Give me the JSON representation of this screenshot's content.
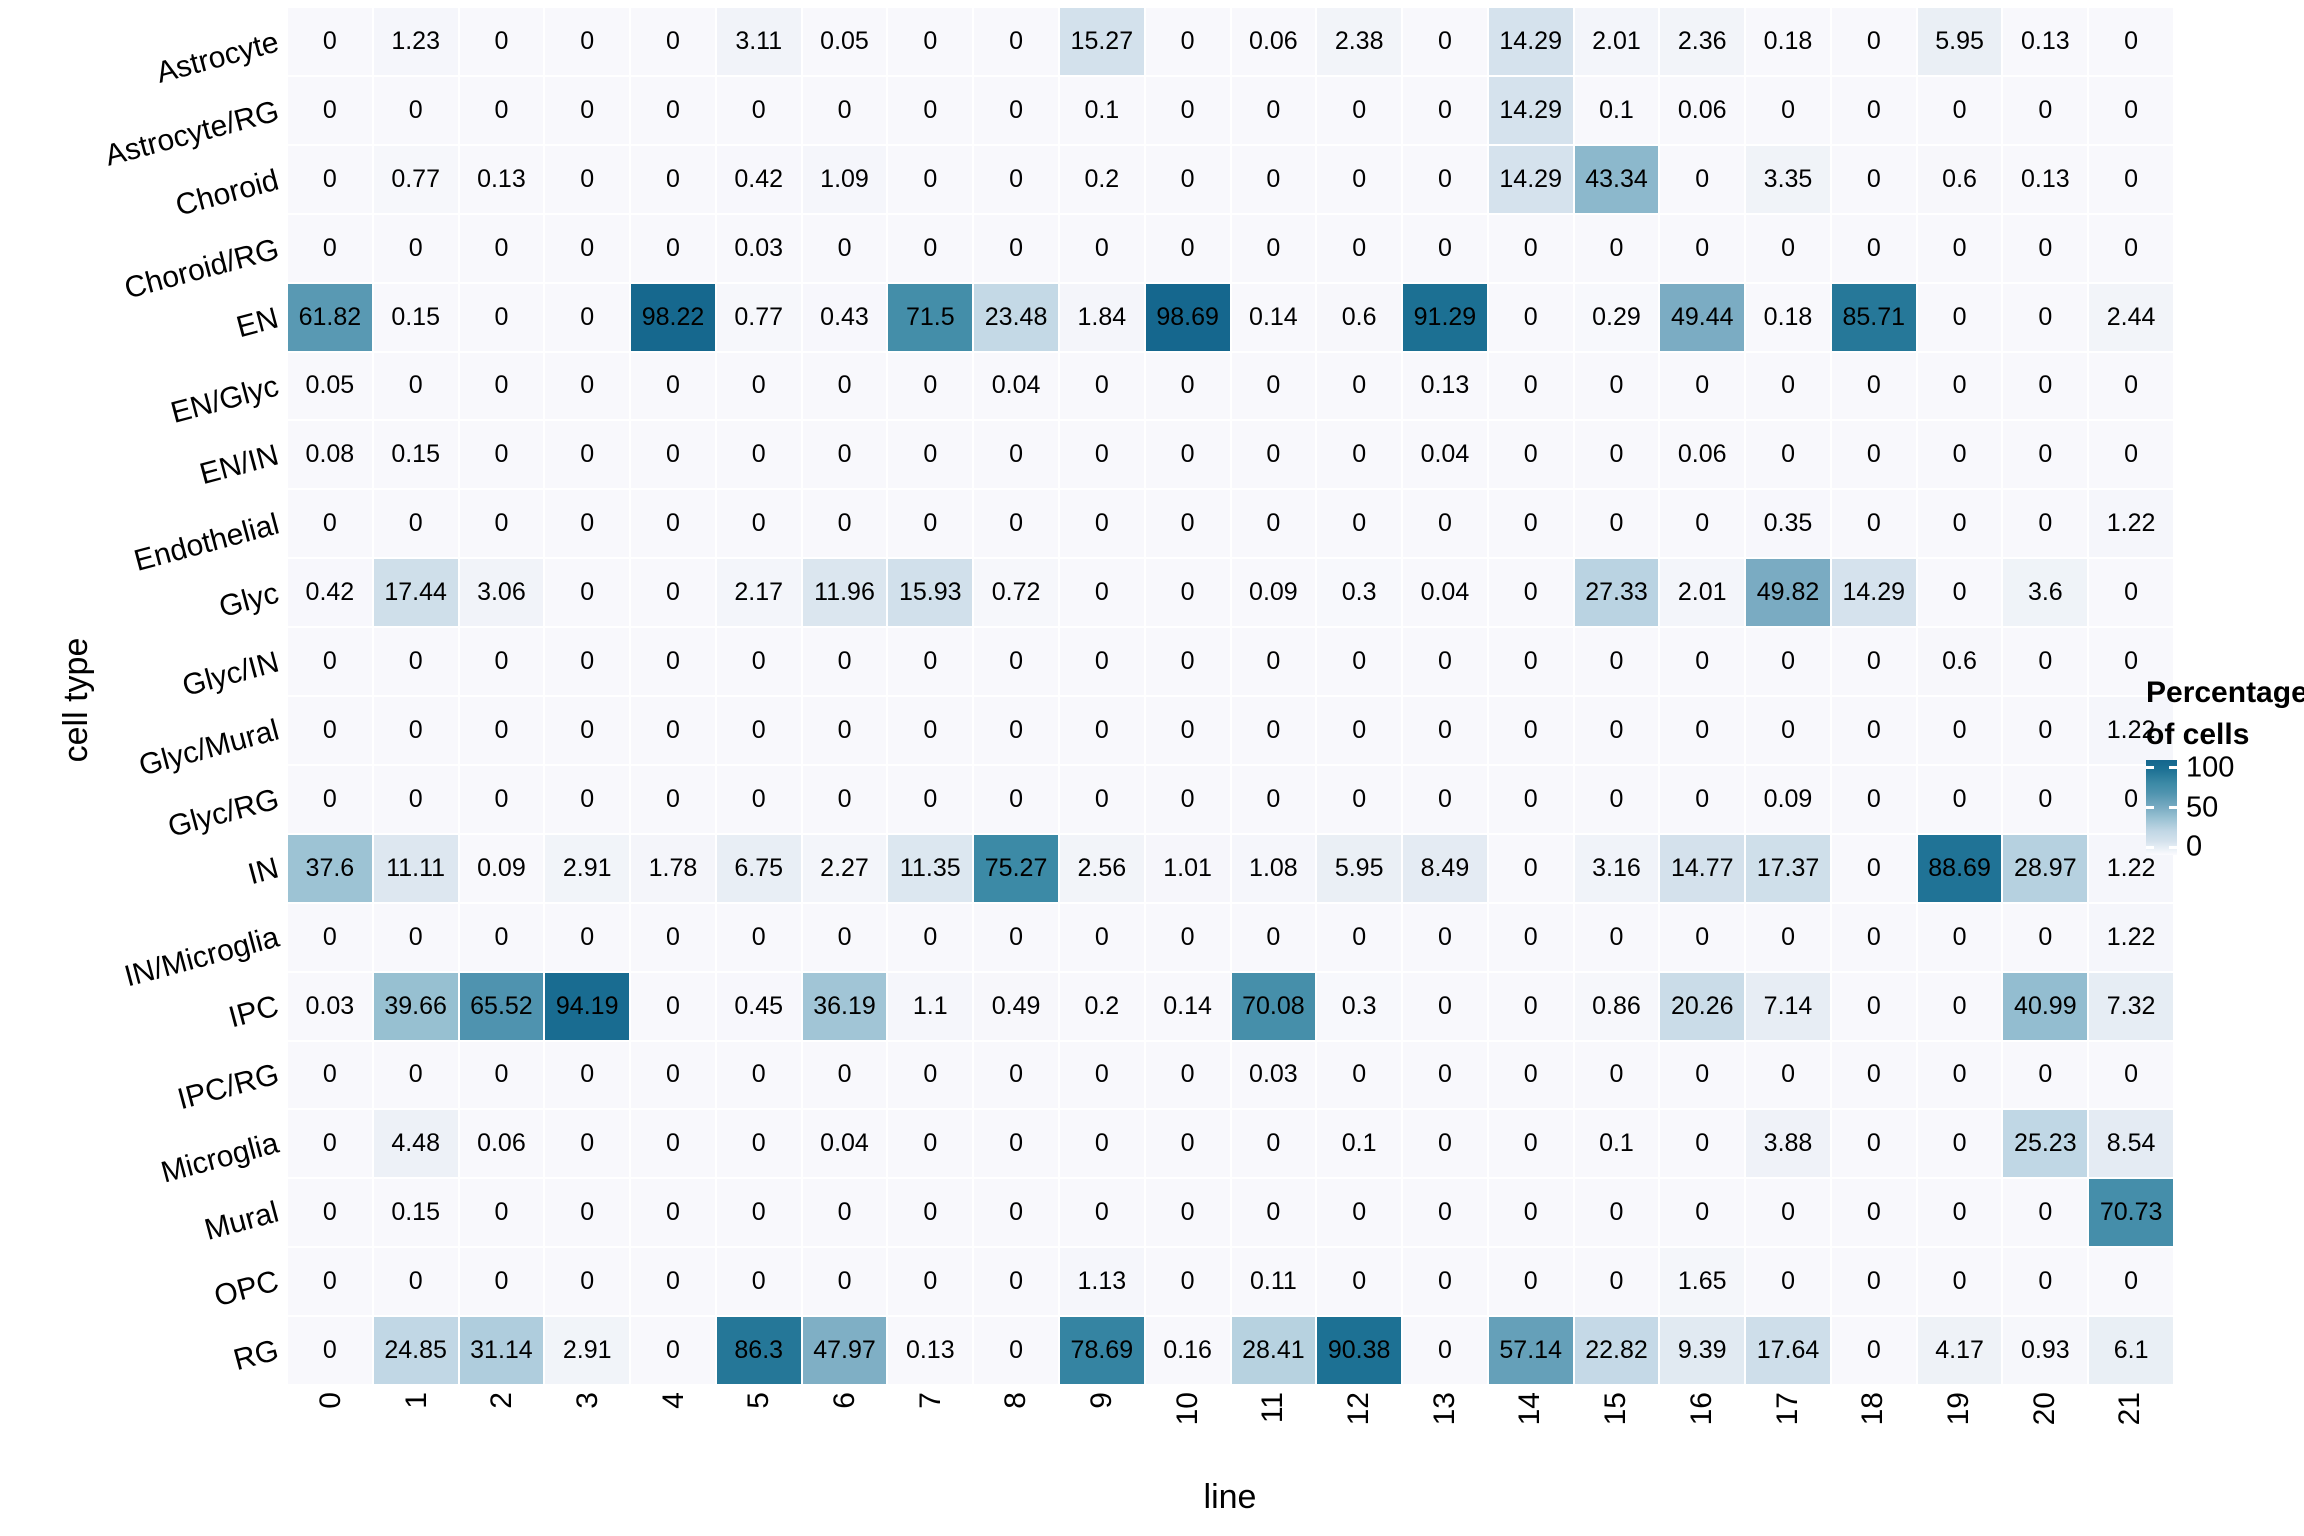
{
  "chart_data": {
    "type": "heatmap",
    "xlabel": "line",
    "ylabel": "cell type",
    "columns": [
      "0",
      "1",
      "2",
      "3",
      "4",
      "5",
      "6",
      "7",
      "8",
      "9",
      "10",
      "11",
      "12",
      "13",
      "14",
      "15",
      "16",
      "17",
      "18",
      "19",
      "20",
      "21"
    ],
    "rows": [
      "Astrocyte",
      "Astrocyte/RG",
      "Choroid",
      "Choroid/RG",
      "EN",
      "EN/Glyc",
      "EN/IN",
      "Endothelial",
      "Glyc",
      "Glyc/IN",
      "Glyc/Mural",
      "Glyc/RG",
      "IN",
      "IN/Microglia",
      "IPC",
      "IPC/RG",
      "Microglia",
      "Mural",
      "OPC",
      "RG"
    ],
    "values": [
      [
        "0",
        "1.23",
        "0",
        "0",
        "0",
        "3.11",
        "0.05",
        "0",
        "0",
        "15.27",
        "0",
        "0.06",
        "2.38",
        "0",
        "14.29",
        "2.01",
        "2.36",
        "0.18",
        "0",
        "5.95",
        "0.13",
        "0"
      ],
      [
        "0",
        "0",
        "0",
        "0",
        "0",
        "0",
        "0",
        "0",
        "0",
        "0.1",
        "0",
        "0",
        "0",
        "0",
        "14.29",
        "0.1",
        "0.06",
        "0",
        "0",
        "0",
        "0",
        "0"
      ],
      [
        "0",
        "0.77",
        "0.13",
        "0",
        "0",
        "0.42",
        "1.09",
        "0",
        "0",
        "0.2",
        "0",
        "0",
        "0",
        "0",
        "14.29",
        "43.34",
        "0",
        "3.35",
        "0",
        "0.6",
        "0.13",
        "0"
      ],
      [
        "0",
        "0",
        "0",
        "0",
        "0",
        "0.03",
        "0",
        "0",
        "0",
        "0",
        "0",
        "0",
        "0",
        "0",
        "0",
        "0",
        "0",
        "0",
        "0",
        "0",
        "0",
        "0"
      ],
      [
        "61.82",
        "0.15",
        "0",
        "0",
        "98.22",
        "0.77",
        "0.43",
        "71.5",
        "23.48",
        "1.84",
        "98.69",
        "0.14",
        "0.6",
        "91.29",
        "0",
        "0.29",
        "49.44",
        "0.18",
        "85.71",
        "0",
        "0",
        "2.44"
      ],
      [
        "0.05",
        "0",
        "0",
        "0",
        "0",
        "0",
        "0",
        "0",
        "0.04",
        "0",
        "0",
        "0",
        "0",
        "0.13",
        "0",
        "0",
        "0",
        "0",
        "0",
        "0",
        "0",
        "0"
      ],
      [
        "0.08",
        "0.15",
        "0",
        "0",
        "0",
        "0",
        "0",
        "0",
        "0",
        "0",
        "0",
        "0",
        "0",
        "0.04",
        "0",
        "0",
        "0.06",
        "0",
        "0",
        "0",
        "0",
        "0"
      ],
      [
        "0",
        "0",
        "0",
        "0",
        "0",
        "0",
        "0",
        "0",
        "0",
        "0",
        "0",
        "0",
        "0",
        "0",
        "0",
        "0",
        "0",
        "0.35",
        "0",
        "0",
        "0",
        "1.22"
      ],
      [
        "0.42",
        "17.44",
        "3.06",
        "0",
        "0",
        "2.17",
        "11.96",
        "15.93",
        "0.72",
        "0",
        "0",
        "0.09",
        "0.3",
        "0.04",
        "0",
        "27.33",
        "2.01",
        "49.82",
        "14.29",
        "0",
        "3.6",
        "0"
      ],
      [
        "0",
        "0",
        "0",
        "0",
        "0",
        "0",
        "0",
        "0",
        "0",
        "0",
        "0",
        "0",
        "0",
        "0",
        "0",
        "0",
        "0",
        "0",
        "0",
        "0.6",
        "0",
        "0"
      ],
      [
        "0",
        "0",
        "0",
        "0",
        "0",
        "0",
        "0",
        "0",
        "0",
        "0",
        "0",
        "0",
        "0",
        "0",
        "0",
        "0",
        "0",
        "0",
        "0",
        "0",
        "0",
        "1.22"
      ],
      [
        "0",
        "0",
        "0",
        "0",
        "0",
        "0",
        "0",
        "0",
        "0",
        "0",
        "0",
        "0",
        "0",
        "0",
        "0",
        "0",
        "0",
        "0.09",
        "0",
        "0",
        "0",
        "0"
      ],
      [
        "37.6",
        "11.11",
        "0.09",
        "2.91",
        "1.78",
        "6.75",
        "2.27",
        "11.35",
        "75.27",
        "2.56",
        "1.01",
        "1.08",
        "5.95",
        "8.49",
        "0",
        "3.16",
        "14.77",
        "17.37",
        "0",
        "88.69",
        "28.97",
        "1.22"
      ],
      [
        "0",
        "0",
        "0",
        "0",
        "0",
        "0",
        "0",
        "0",
        "0",
        "0",
        "0",
        "0",
        "0",
        "0",
        "0",
        "0",
        "0",
        "0",
        "0",
        "0",
        "0",
        "1.22"
      ],
      [
        "0.03",
        "39.66",
        "65.52",
        "94.19",
        "0",
        "0.45",
        "36.19",
        "1.1",
        "0.49",
        "0.2",
        "0.14",
        "70.08",
        "0.3",
        "0",
        "0",
        "0.86",
        "20.26",
        "7.14",
        "0",
        "0",
        "40.99",
        "7.32"
      ],
      [
        "0",
        "0",
        "0",
        "0",
        "0",
        "0",
        "0",
        "0",
        "0",
        "0",
        "0",
        "0.03",
        "0",
        "0",
        "0",
        "0",
        "0",
        "0",
        "0",
        "0",
        "0",
        "0"
      ],
      [
        "0",
        "4.48",
        "0.06",
        "0",
        "0",
        "0",
        "0.04",
        "0",
        "0",
        "0",
        "0",
        "0",
        "0.1",
        "0",
        "0",
        "0.1",
        "0",
        "3.88",
        "0",
        "0",
        "25.23",
        "8.54"
      ],
      [
        "0",
        "0.15",
        "0",
        "0",
        "0",
        "0",
        "0",
        "0",
        "0",
        "0",
        "0",
        "0",
        "0",
        "0",
        "0",
        "0",
        "0",
        "0",
        "0",
        "0",
        "0",
        "70.73"
      ],
      [
        "0",
        "0",
        "0",
        "0",
        "0",
        "0",
        "0",
        "0",
        "0",
        "1.13",
        "0",
        "0.11",
        "0",
        "0",
        "0",
        "0",
        "1.65",
        "0",
        "0",
        "0",
        "0",
        "0"
      ],
      [
        "0",
        "24.85",
        "31.14",
        "2.91",
        "0",
        "86.3",
        "47.97",
        "0.13",
        "0",
        "78.69",
        "0.16",
        "28.41",
        "90.38",
        "0",
        "57.14",
        "22.82",
        "9.39",
        "17.64",
        "0",
        "4.17",
        "0.93",
        "6.1"
      ]
    ],
    "value_range": [
      0,
      100
    ],
    "legend": {
      "title_line1": "Percentage",
      "title_line2": "of cells",
      "ticks": [
        "100",
        "50",
        "0"
      ],
      "tick_positions_pct": [
        8,
        50,
        92
      ]
    },
    "colors": {
      "background": "#ffffff",
      "grid_gap": "#ffffff",
      "text": "#000000",
      "scale_stops": [
        [
          0,
          [
            248,
            248,
            252
          ]
        ],
        [
          10,
          [
            224,
            233,
            241
          ]
        ],
        [
          15,
          [
            211,
            225,
            236
          ]
        ],
        [
          25,
          [
            193,
            215,
            229
          ]
        ],
        [
          40,
          [
            150,
            191,
            209
          ]
        ],
        [
          50,
          [
            121,
            171,
            194
          ]
        ],
        [
          65,
          [
            80,
            148,
            175
          ]
        ],
        [
          75,
          [
            61,
            138,
            166
          ]
        ],
        [
          90,
          [
            29,
            113,
            148
          ]
        ],
        [
          100,
          [
            20,
            102,
            141
          ]
        ]
      ]
    }
  }
}
